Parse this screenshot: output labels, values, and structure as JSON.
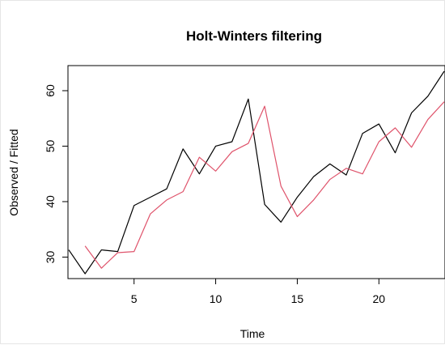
{
  "chart_data": {
    "type": "line",
    "title": "Holt-Winters filtering",
    "xlabel": "Time",
    "ylabel": "Observed / Fitted",
    "xlim": [
      1,
      24
    ],
    "ylim": [
      27,
      63.5
    ],
    "x_ticks": [
      5,
      10,
      15,
      20
    ],
    "x_tick_labels": [
      "5",
      "10",
      "15",
      "20"
    ],
    "y_ticks": [
      30,
      40,
      50,
      60
    ],
    "y_tick_labels": [
      "30",
      "40",
      "50",
      "60"
    ],
    "grid": false,
    "legend": "none",
    "series": [
      {
        "role": "observed",
        "color": "#000000",
        "x": [
          1,
          2,
          3,
          4,
          5,
          6,
          7,
          8,
          9,
          10,
          11,
          12,
          13,
          14,
          15,
          16,
          17,
          18,
          19,
          20,
          21,
          22,
          23,
          24
        ],
        "values": [
          31.3,
          27.0,
          31.3,
          31.0,
          39.3,
          40.8,
          42.3,
          49.5,
          45.0,
          50.0,
          50.8,
          58.5,
          39.5,
          36.3,
          40.8,
          44.5,
          46.8,
          44.8,
          52.3,
          54.0,
          48.8,
          56.0,
          59.0,
          63.5
        ]
      },
      {
        "role": "fitted",
        "color": "#df536b",
        "x": [
          2,
          3,
          4,
          5,
          6,
          7,
          8,
          9,
          10,
          11,
          12,
          13,
          14,
          15,
          16,
          17,
          18,
          19,
          20,
          21,
          22,
          23,
          24
        ],
        "values": [
          32.0,
          28.0,
          30.8,
          31.0,
          37.8,
          40.3,
          41.8,
          48.0,
          45.5,
          49.0,
          50.5,
          57.2,
          42.8,
          37.3,
          40.3,
          44.0,
          46.0,
          45.0,
          50.8,
          53.3,
          49.8,
          54.8,
          58.0
        ]
      }
    ]
  }
}
